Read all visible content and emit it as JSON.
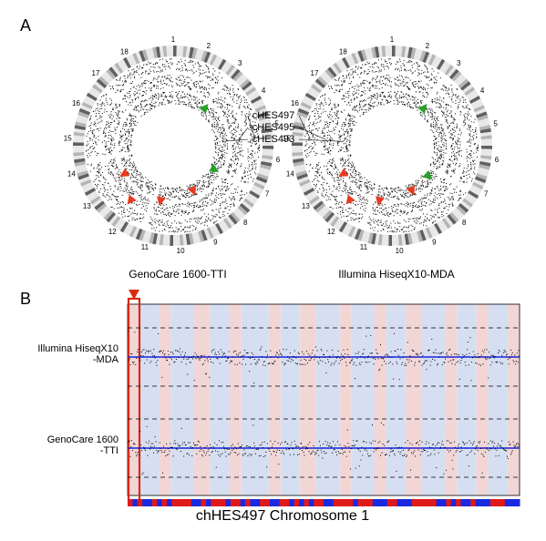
{
  "panelA": {
    "label": "A",
    "left_caption": "GenoCare 1600-TTI",
    "right_caption": "Illumina HiseqX10-MDA",
    "ring_labels": [
      "cHES497",
      "cHES495",
      "cHES493"
    ],
    "chrom_ticks": [
      "1",
      "2",
      "3",
      "4",
      "5",
      "6",
      "7",
      "8",
      "9",
      "10",
      "11",
      "12",
      "13",
      "14",
      "15",
      "16",
      "17",
      "18"
    ],
    "outer_ring_color": "#e6e6e6",
    "data_color": "#000000",
    "arrow_red": "#e83a1f",
    "arrow_green": "#2aa02a",
    "arrows_left": [
      {
        "ang": 240,
        "r": 68,
        "color": "red"
      },
      {
        "ang": 218,
        "r": 82,
        "color": "red"
      },
      {
        "ang": 193,
        "r": 68,
        "color": "red"
      },
      {
        "ang": 156,
        "r": 60,
        "color": "red"
      },
      {
        "ang": 120,
        "r": 58,
        "color": "green"
      },
      {
        "ang": 40,
        "r": 60,
        "color": "green"
      }
    ],
    "arrows_right": [
      {
        "ang": 240,
        "r": 68,
        "color": "red"
      },
      {
        "ang": 218,
        "r": 82,
        "color": "red"
      },
      {
        "ang": 193,
        "r": 68,
        "color": "red"
      },
      {
        "ang": 156,
        "r": 60,
        "color": "red"
      },
      {
        "ang": 130,
        "r": 58,
        "color": "green"
      },
      {
        "ang": 40,
        "r": 60,
        "color": "green"
      }
    ]
  },
  "panelB": {
    "label": "B",
    "title": "chHES497 Chromosome 1",
    "row1": "Illumina HiseqX10\n-MDA",
    "row2": "GenoCare 1600\n-TTI",
    "marker_color": "#d82a12",
    "band_colors": {
      "blue": "#d6dff2",
      "pink": "#f2d6d6"
    },
    "midline_color": "#1822d8",
    "point_color": "#000000",
    "dash_color": "#000000",
    "bottom_scale": {
      "blue": "#1a2ae0",
      "red": "#e01a1a"
    },
    "bands": [
      {
        "x": 0.0,
        "w": 0.03,
        "c": "pink"
      },
      {
        "x": 0.03,
        "w": 0.05,
        "c": "blue"
      },
      {
        "x": 0.08,
        "w": 0.03,
        "c": "pink"
      },
      {
        "x": 0.11,
        "w": 0.06,
        "c": "blue"
      },
      {
        "x": 0.17,
        "w": 0.04,
        "c": "pink"
      },
      {
        "x": 0.21,
        "w": 0.05,
        "c": "blue"
      },
      {
        "x": 0.26,
        "w": 0.03,
        "c": "pink"
      },
      {
        "x": 0.29,
        "w": 0.07,
        "c": "blue"
      },
      {
        "x": 0.36,
        "w": 0.03,
        "c": "pink"
      },
      {
        "x": 0.39,
        "w": 0.05,
        "c": "blue"
      },
      {
        "x": 0.44,
        "w": 0.04,
        "c": "pink"
      },
      {
        "x": 0.48,
        "w": 0.06,
        "c": "blue"
      },
      {
        "x": 0.54,
        "w": 0.03,
        "c": "pink"
      },
      {
        "x": 0.57,
        "w": 0.06,
        "c": "blue"
      },
      {
        "x": 0.63,
        "w": 0.03,
        "c": "pink"
      },
      {
        "x": 0.66,
        "w": 0.05,
        "c": "blue"
      },
      {
        "x": 0.71,
        "w": 0.04,
        "c": "pink"
      },
      {
        "x": 0.75,
        "w": 0.06,
        "c": "blue"
      },
      {
        "x": 0.81,
        "w": 0.03,
        "c": "pink"
      },
      {
        "x": 0.84,
        "w": 0.05,
        "c": "blue"
      },
      {
        "x": 0.89,
        "w": 0.03,
        "c": "pink"
      },
      {
        "x": 0.92,
        "w": 0.05,
        "c": "blue"
      },
      {
        "x": 0.97,
        "w": 0.03,
        "c": "pink"
      }
    ]
  }
}
